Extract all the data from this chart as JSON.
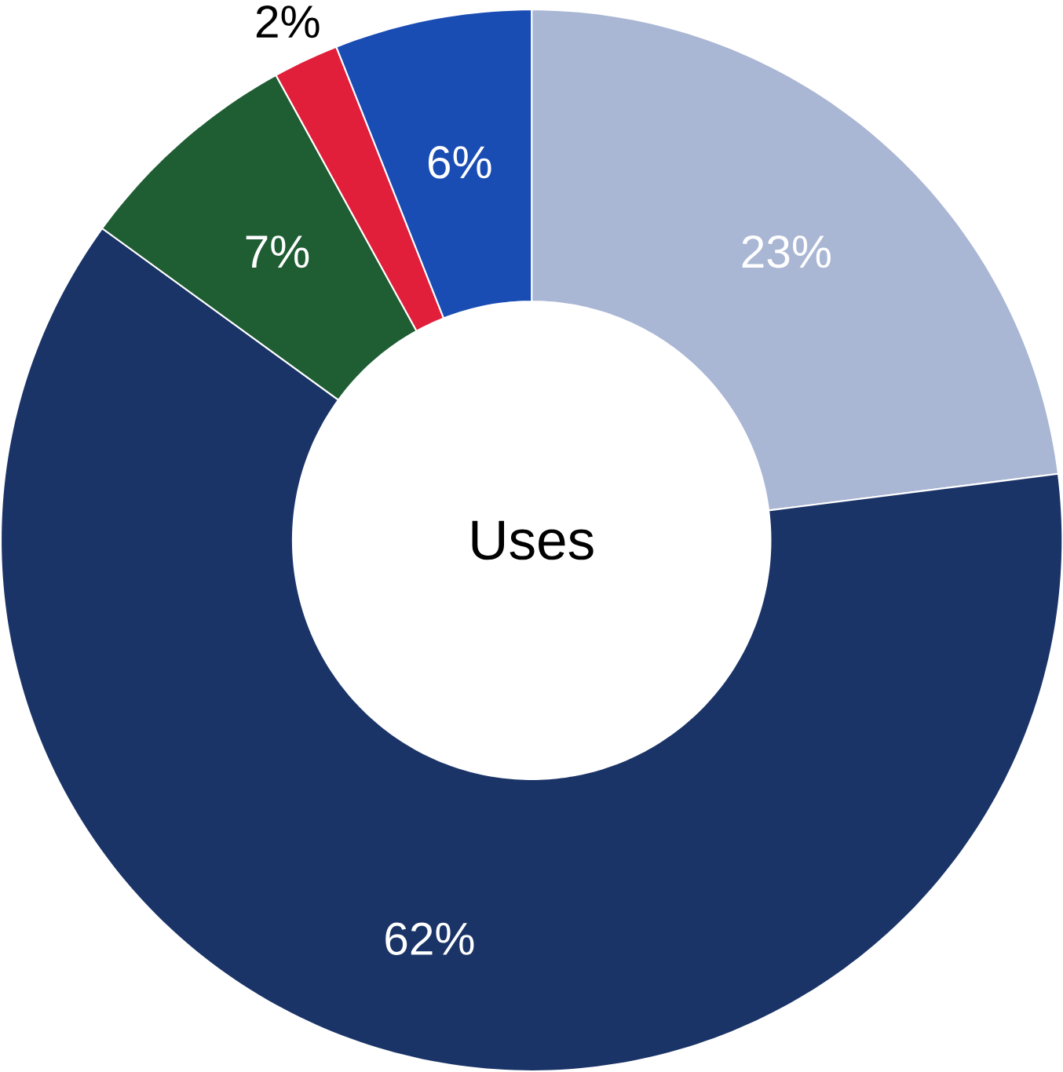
{
  "chart_data": {
    "type": "donut",
    "title": "Uses",
    "categories": [
      null,
      null,
      null,
      null,
      null
    ],
    "values": [
      23,
      62,
      7,
      2,
      6
    ],
    "colors": [
      "#a9b6d4",
      "#1b3468",
      "#1f5d33",
      "#e11f3a",
      "#1a4db3"
    ],
    "value_labels": [
      "23%",
      "62%",
      "7%",
      "2%",
      "6%"
    ]
  }
}
